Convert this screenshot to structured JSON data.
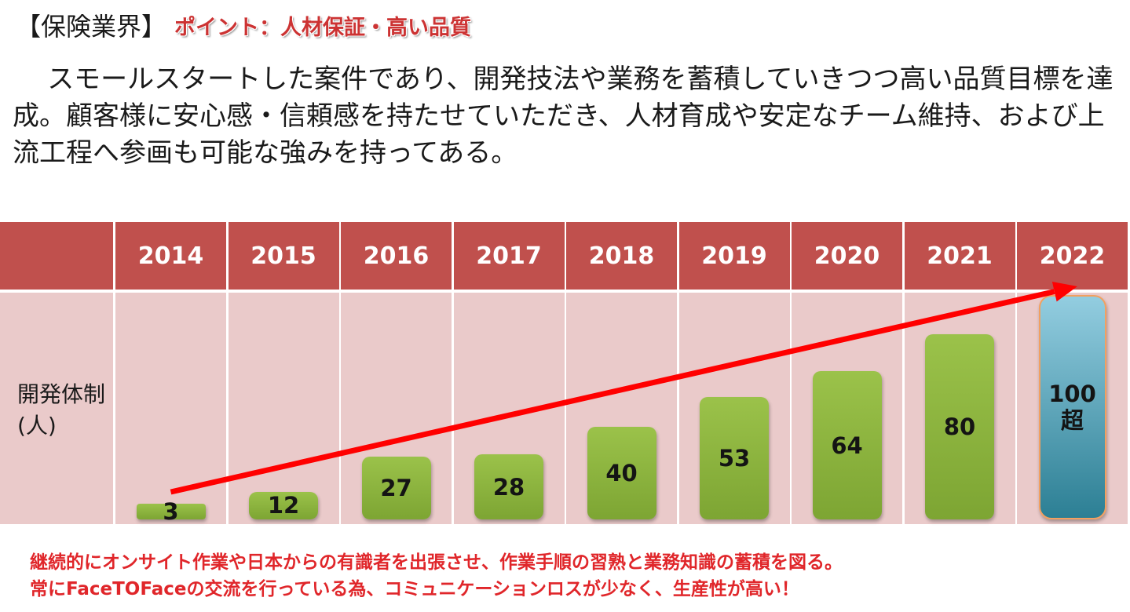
{
  "title": "【保険業界】",
  "point": "ポイント：人材保証・高い品質",
  "description": "スモールスタートした案件であり、開発技法や業務を蓄積していきつつ高い品質目標を達成。顧客様に安心感・信頼感を持たせていただき、人材育成や安定なチーム維持、および上流工程へ参画も可能な強みを持ってある。",
  "row_label": "開発体制(人)",
  "footer": [
    "継続的にオンサイト作業や日本からの有識者を出張させ、作業手順の習熟と業務知識の蓄積を図る。",
    "常にFaceTOFaceの交流を行っている為、コミュニケーションロスが少なく、生産性が高い！"
  ],
  "colors": {
    "header": "#c0504d",
    "body": "#eacaca",
    "bar": "#8db53c",
    "last_bar": "#4aa0b8",
    "arrow": "#ff0000",
    "footer_text": "#e0262a"
  },
  "chart_data": {
    "type": "bar",
    "categories": [
      "2014",
      "2015",
      "2016",
      "2017",
      "2018",
      "2019",
      "2020",
      "2021",
      "2022"
    ],
    "values": [
      3,
      12,
      27,
      28,
      40,
      53,
      64,
      80,
      100
    ],
    "value_labels": [
      "3",
      "12",
      "27",
      "28",
      "40",
      "53",
      "64",
      "80",
      "100\n超"
    ],
    "ylabel": "開発体制(人)",
    "trend_arrow": true,
    "grid": false,
    "legend": "none"
  }
}
